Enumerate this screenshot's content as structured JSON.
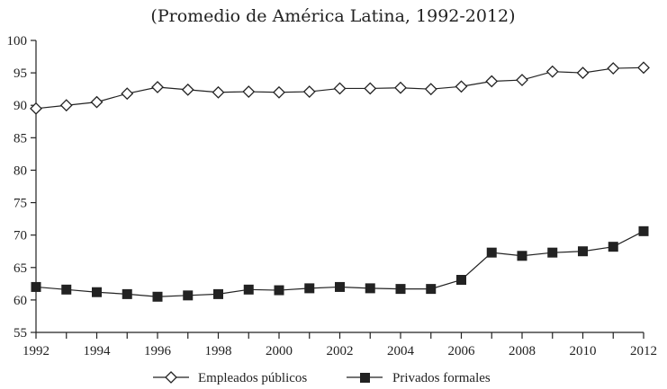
{
  "chart_data": {
    "type": "line",
    "title": "(Promedio de América Latina, 1992-2012)",
    "xlabel": "",
    "ylabel": "",
    "x": [
      1992,
      1993,
      1994,
      1995,
      1996,
      1997,
      1998,
      1999,
      2000,
      2001,
      2002,
      2003,
      2004,
      2005,
      2006,
      2007,
      2008,
      2009,
      2010,
      2011,
      2012
    ],
    "x_tick_labels": [
      "1992",
      "1994",
      "1996",
      "1998",
      "2000",
      "2002",
      "2004",
      "2006",
      "2008",
      "2010",
      "2012"
    ],
    "xlim": [
      1992,
      2012
    ],
    "ylim": [
      55,
      100
    ],
    "y_tick_labels": [
      "100",
      "95",
      "90",
      "85",
      "80",
      "75",
      "70",
      "65",
      "60",
      "55"
    ],
    "grid": false,
    "legend_position": "bottom-center",
    "series": [
      {
        "name": "Empleados públicos",
        "marker": "open-diamond",
        "color": "#222222",
        "values": [
          89.5,
          90.0,
          90.5,
          91.8,
          92.8,
          92.4,
          92.0,
          92.1,
          92.0,
          92.1,
          92.6,
          92.6,
          92.7,
          92.5,
          92.9,
          93.7,
          93.9,
          95.2,
          95.0,
          95.7,
          95.8
        ]
      },
      {
        "name": "Privados formales",
        "marker": "filled-square",
        "color": "#222222",
        "values": [
          62.0,
          61.6,
          61.2,
          60.9,
          60.5,
          60.7,
          60.9,
          61.6,
          61.5,
          61.8,
          62.0,
          61.8,
          61.7,
          61.7,
          63.1,
          67.3,
          66.8,
          67.3,
          67.5,
          68.2,
          70.6
        ]
      }
    ]
  }
}
